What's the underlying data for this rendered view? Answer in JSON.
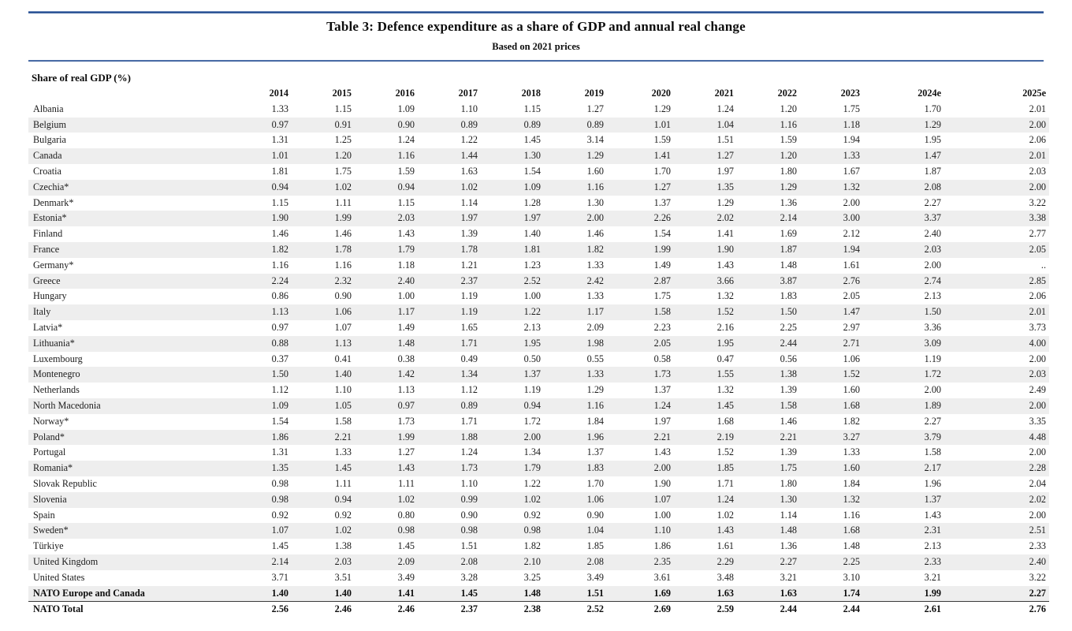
{
  "document": {
    "title": "Table 3: Defence expenditure as a share of GDP and annual real change",
    "subtitle": "Based on 2021 prices",
    "section_label": "Share of real GDP (%)"
  },
  "colors": {
    "rule_blue": "#2e5596",
    "rule_blue_light": "#93a9cf",
    "stripe": "#eeeeee",
    "ink": "#1c1c1c",
    "separator": "#3a3a3a"
  },
  "chart_data": {
    "type": "table",
    "title": "Table 3: Defence expenditure as a share of GDP and annual real change",
    "subtitle": "Based on 2021 prices",
    "section_label": "Share of real GDP (%)",
    "columns": [
      "2014",
      "2015",
      "2016",
      "2017",
      "2018",
      "2019",
      "2020",
      "2021",
      "2022",
      "2023",
      "2024e",
      "2025e"
    ],
    "rows": [
      {
        "name": "Albania",
        "bold": false,
        "values": [
          "1.33",
          "1.15",
          "1.09",
          "1.10",
          "1.15",
          "1.27",
          "1.29",
          "1.24",
          "1.20",
          "1.75",
          "1.70",
          "2.01"
        ]
      },
      {
        "name": "Belgium",
        "bold": false,
        "values": [
          "0.97",
          "0.91",
          "0.90",
          "0.89",
          "0.89",
          "0.89",
          "1.01",
          "1.04",
          "1.16",
          "1.18",
          "1.29",
          "2.00"
        ]
      },
      {
        "name": "Bulgaria",
        "bold": false,
        "values": [
          "1.31",
          "1.25",
          "1.24",
          "1.22",
          "1.45",
          "3.14",
          "1.59",
          "1.51",
          "1.59",
          "1.94",
          "1.95",
          "2.06"
        ]
      },
      {
        "name": "Canada",
        "bold": false,
        "values": [
          "1.01",
          "1.20",
          "1.16",
          "1.44",
          "1.30",
          "1.29",
          "1.41",
          "1.27",
          "1.20",
          "1.33",
          "1.47",
          "2.01"
        ]
      },
      {
        "name": "Croatia",
        "bold": false,
        "values": [
          "1.81",
          "1.75",
          "1.59",
          "1.63",
          "1.54",
          "1.60",
          "1.70",
          "1.97",
          "1.80",
          "1.67",
          "1.87",
          "2.03"
        ]
      },
      {
        "name": "Czechia*",
        "bold": false,
        "values": [
          "0.94",
          "1.02",
          "0.94",
          "1.02",
          "1.09",
          "1.16",
          "1.27",
          "1.35",
          "1.29",
          "1.32",
          "2.08",
          "2.00"
        ]
      },
      {
        "name": "Denmark*",
        "bold": false,
        "values": [
          "1.15",
          "1.11",
          "1.15",
          "1.14",
          "1.28",
          "1.30",
          "1.37",
          "1.29",
          "1.36",
          "2.00",
          "2.27",
          "3.22"
        ]
      },
      {
        "name": "Estonia*",
        "bold": false,
        "values": [
          "1.90",
          "1.99",
          "2.03",
          "1.97",
          "1.97",
          "2.00",
          "2.26",
          "2.02",
          "2.14",
          "3.00",
          "3.37",
          "3.38"
        ]
      },
      {
        "name": "Finland",
        "bold": false,
        "values": [
          "1.46",
          "1.46",
          "1.43",
          "1.39",
          "1.40",
          "1.46",
          "1.54",
          "1.41",
          "1.69",
          "2.12",
          "2.40",
          "2.77"
        ]
      },
      {
        "name": "France",
        "bold": false,
        "values": [
          "1.82",
          "1.78",
          "1.79",
          "1.78",
          "1.81",
          "1.82",
          "1.99",
          "1.90",
          "1.87",
          "1.94",
          "2.03",
          "2.05"
        ]
      },
      {
        "name": "Germany*",
        "bold": false,
        "values": [
          "1.16",
          "1.16",
          "1.18",
          "1.21",
          "1.23",
          "1.33",
          "1.49",
          "1.43",
          "1.48",
          "1.61",
          "2.00",
          ".."
        ]
      },
      {
        "name": "Greece",
        "bold": false,
        "values": [
          "2.24",
          "2.32",
          "2.40",
          "2.37",
          "2.52",
          "2.42",
          "2.87",
          "3.66",
          "3.87",
          "2.76",
          "2.74",
          "2.85"
        ]
      },
      {
        "name": "Hungary",
        "bold": false,
        "values": [
          "0.86",
          "0.90",
          "1.00",
          "1.19",
          "1.00",
          "1.33",
          "1.75",
          "1.32",
          "1.83",
          "2.05",
          "2.13",
          "2.06"
        ]
      },
      {
        "name": "Italy",
        "bold": false,
        "values": [
          "1.13",
          "1.06",
          "1.17",
          "1.19",
          "1.22",
          "1.17",
          "1.58",
          "1.52",
          "1.50",
          "1.47",
          "1.50",
          "2.01"
        ]
      },
      {
        "name": "Latvia*",
        "bold": false,
        "values": [
          "0.97",
          "1.07",
          "1.49",
          "1.65",
          "2.13",
          "2.09",
          "2.23",
          "2.16",
          "2.25",
          "2.97",
          "3.36",
          "3.73"
        ]
      },
      {
        "name": "Lithuania*",
        "bold": false,
        "values": [
          "0.88",
          "1.13",
          "1.48",
          "1.71",
          "1.95",
          "1.98",
          "2.05",
          "1.95",
          "2.44",
          "2.71",
          "3.09",
          "4.00"
        ]
      },
      {
        "name": "Luxembourg",
        "bold": false,
        "values": [
          "0.37",
          "0.41",
          "0.38",
          "0.49",
          "0.50",
          "0.55",
          "0.58",
          "0.47",
          "0.56",
          "1.06",
          "1.19",
          "2.00"
        ]
      },
      {
        "name": "Montenegro",
        "bold": false,
        "values": [
          "1.50",
          "1.40",
          "1.42",
          "1.34",
          "1.37",
          "1.33",
          "1.73",
          "1.55",
          "1.38",
          "1.52",
          "1.72",
          "2.03"
        ]
      },
      {
        "name": "Netherlands",
        "bold": false,
        "values": [
          "1.12",
          "1.10",
          "1.13",
          "1.12",
          "1.19",
          "1.29",
          "1.37",
          "1.32",
          "1.39",
          "1.60",
          "2.00",
          "2.49"
        ]
      },
      {
        "name": "North Macedonia",
        "bold": false,
        "values": [
          "1.09",
          "1.05",
          "0.97",
          "0.89",
          "0.94",
          "1.16",
          "1.24",
          "1.45",
          "1.58",
          "1.68",
          "1.89",
          "2.00"
        ]
      },
      {
        "name": "Norway*",
        "bold": false,
        "values": [
          "1.54",
          "1.58",
          "1.73",
          "1.71",
          "1.72",
          "1.84",
          "1.97",
          "1.68",
          "1.46",
          "1.82",
          "2.27",
          "3.35"
        ]
      },
      {
        "name": "Poland*",
        "bold": false,
        "values": [
          "1.86",
          "2.21",
          "1.99",
          "1.88",
          "2.00",
          "1.96",
          "2.21",
          "2.19",
          "2.21",
          "3.27",
          "3.79",
          "4.48"
        ]
      },
      {
        "name": "Portugal",
        "bold": false,
        "values": [
          "1.31",
          "1.33",
          "1.27",
          "1.24",
          "1.34",
          "1.37",
          "1.43",
          "1.52",
          "1.39",
          "1.33",
          "1.58",
          "2.00"
        ]
      },
      {
        "name": "Romania*",
        "bold": false,
        "values": [
          "1.35",
          "1.45",
          "1.43",
          "1.73",
          "1.79",
          "1.83",
          "2.00",
          "1.85",
          "1.75",
          "1.60",
          "2.17",
          "2.28"
        ]
      },
      {
        "name": "Slovak Republic",
        "bold": false,
        "values": [
          "0.98",
          "1.11",
          "1.11",
          "1.10",
          "1.22",
          "1.70",
          "1.90",
          "1.71",
          "1.80",
          "1.84",
          "1.96",
          "2.04"
        ]
      },
      {
        "name": "Slovenia",
        "bold": false,
        "values": [
          "0.98",
          "0.94",
          "1.02",
          "0.99",
          "1.02",
          "1.06",
          "1.07",
          "1.24",
          "1.30",
          "1.32",
          "1.37",
          "2.02"
        ]
      },
      {
        "name": "Spain",
        "bold": false,
        "values": [
          "0.92",
          "0.92",
          "0.80",
          "0.90",
          "0.92",
          "0.90",
          "1.00",
          "1.02",
          "1.14",
          "1.16",
          "1.43",
          "2.00"
        ]
      },
      {
        "name": "Sweden*",
        "bold": false,
        "values": [
          "1.07",
          "1.02",
          "0.98",
          "0.98",
          "0.98",
          "1.04",
          "1.10",
          "1.43",
          "1.48",
          "1.68",
          "2.31",
          "2.51"
        ]
      },
      {
        "name": "Türkiye",
        "bold": false,
        "values": [
          "1.45",
          "1.38",
          "1.45",
          "1.51",
          "1.82",
          "1.85",
          "1.86",
          "1.61",
          "1.36",
          "1.48",
          "2.13",
          "2.33"
        ]
      },
      {
        "name": "United Kingdom",
        "bold": false,
        "values": [
          "2.14",
          "2.03",
          "2.09",
          "2.08",
          "2.10",
          "2.08",
          "2.35",
          "2.29",
          "2.27",
          "2.25",
          "2.33",
          "2.40"
        ]
      },
      {
        "name": "United States",
        "bold": false,
        "values": [
          "3.71",
          "3.51",
          "3.49",
          "3.28",
          "3.25",
          "3.49",
          "3.61",
          "3.48",
          "3.21",
          "3.10",
          "3.21",
          "3.22"
        ]
      },
      {
        "name": "NATO Europe and Canada",
        "bold": true,
        "values": [
          "1.40",
          "1.40",
          "1.41",
          "1.45",
          "1.48",
          "1.51",
          "1.69",
          "1.63",
          "1.63",
          "1.74",
          "1.99",
          "2.27"
        ]
      },
      {
        "name": "NATO Total",
        "bold": true,
        "values": [
          "2.56",
          "2.46",
          "2.46",
          "2.37",
          "2.38",
          "2.52",
          "2.69",
          "2.59",
          "2.44",
          "2.44",
          "2.61",
          "2.76"
        ]
      }
    ],
    "layout_hints": {
      "striped_rows": "every second row shaded",
      "separator_line_above_last_row": true,
      "numeric_alignment": "right"
    }
  }
}
